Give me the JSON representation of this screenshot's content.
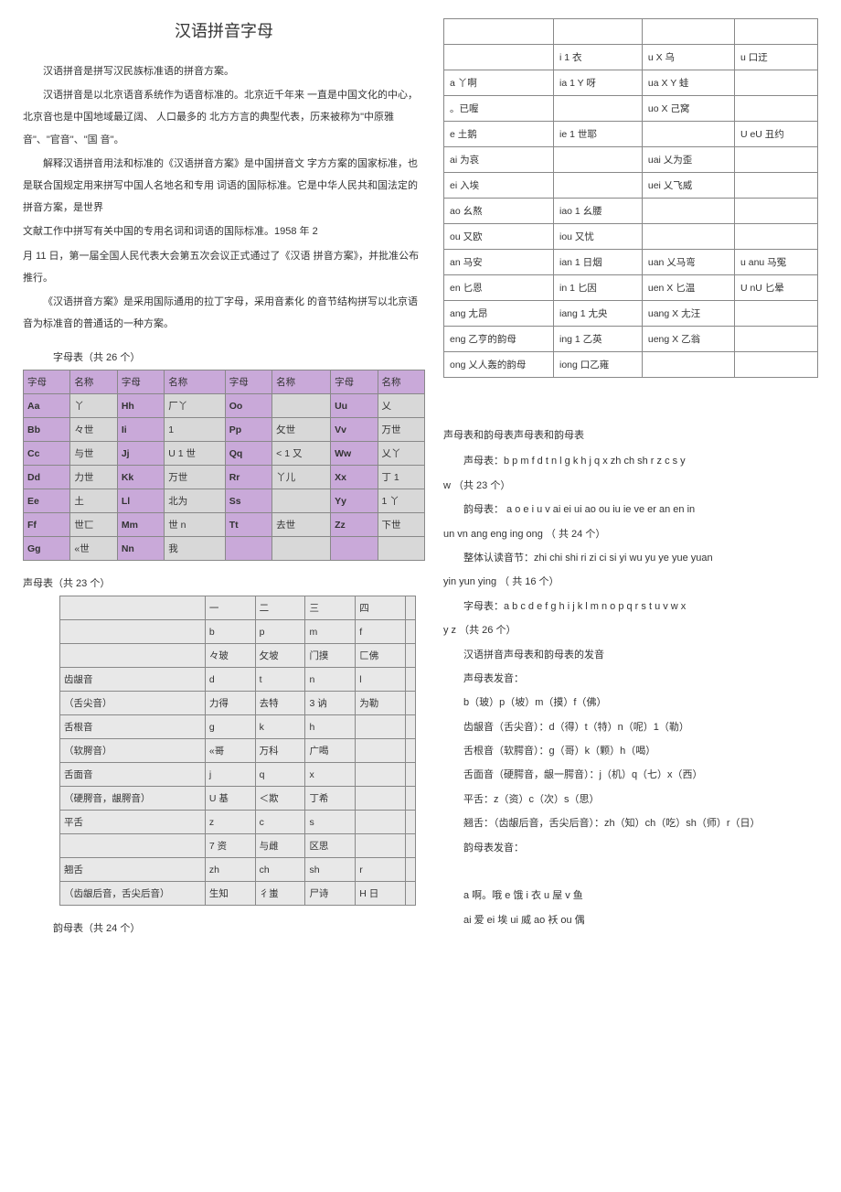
{
  "title": "汉语拼音字母",
  "intro": [
    "汉语拼音是拼写汉民族标准语的拼音方案。",
    "汉语拼音是以北京语音系统作为语音标准的。北京近千年来 一直是中国文化的中心， 北京音也是中国地域最辽阔、 人口最多的 北方方言的典型代表，历来被称为\"中原雅音\"、\"官音\"、\"国 音\"。",
    "解释汉语拼音用法和标准的《汉语拼音方案》是中国拼音文 字方方案的国家标准，也是联合国规定用来拼写中国人名地名和专用 词语的国际标准。它是中华人民共和国法定的拼音方案，是世界",
    "文献工作中拼写有关中国的专用名词和词语的国际标准。1958 年 2",
    "月 11 日，第一届全国人民代表大会第五次会议正式通过了《汉语 拼音方案》，并批准公布推行。",
    "《汉语拼音方案》是采用国际通用的拉丁字母，采用音素化 的音节结构拼写以北京语音为标准音的普通话的一种方案。"
  ],
  "zimu_label": "字母表（共 26 个）",
  "zimu_headers": [
    "字母",
    "名称",
    "字母",
    "名称",
    "字母",
    "名称",
    "字母",
    "名称"
  ],
  "zimu_rows": [
    [
      "Aa",
      "丫",
      "Hh",
      "厂丫",
      "Oo",
      "",
      "Uu",
      "乂"
    ],
    [
      "Bb",
      "々世",
      "Ii",
      "1",
      "Pp",
      "攵世",
      "Vv",
      "万世"
    ],
    [
      "Cc",
      "与世",
      "Jj",
      "U 1 世",
      "Qq",
      "< 1 又",
      "Ww",
      "乂丫"
    ],
    [
      "Dd",
      "力世",
      "Kk",
      "万世",
      "Rr",
      "丫儿",
      "Xx",
      "丁 1"
    ],
    [
      "Ee",
      "土",
      "Ll",
      "北为",
      "Ss",
      "",
      "Yy",
      "1 丫"
    ],
    [
      "Ff",
      "世匸",
      "Mm",
      "世 n",
      "Tt",
      "去世",
      "Zz",
      "下世"
    ],
    [
      "Gg",
      "«世",
      "Nn",
      "我",
      "",
      "",
      "",
      ""
    ]
  ],
  "shengmu_label": "声母表（共 23 个）",
  "shengmu_rows": [
    [
      "",
      "一",
      "二",
      "三",
      "四",
      ""
    ],
    [
      "",
      "b",
      "p",
      "m",
      "f",
      ""
    ],
    [
      "",
      "々玻",
      "攵坡",
      "门摸",
      "匚佛",
      ""
    ],
    [
      "齿龈音",
      "d",
      "t",
      "n",
      "l",
      ""
    ],
    [
      "（舌尖音）",
      "力得",
      "去特",
      "3 讷",
      "为勒",
      ""
    ],
    [
      "舌根音",
      "g",
      "k",
      "h",
      "",
      ""
    ],
    [
      "（软腭音）",
      "«哥",
      "万科",
      "广喝",
      "",
      ""
    ],
    [
      "舌面音",
      "j",
      "q",
      "x",
      "",
      ""
    ],
    [
      "（硬腭音，龈腭音）",
      "U 基",
      "＜欺",
      "丁希",
      "",
      ""
    ],
    [
      "平舌",
      "z",
      "c",
      "s",
      "",
      ""
    ],
    [
      "",
      "7 资",
      "与雌",
      "区思",
      "",
      ""
    ],
    [
      "翘舌",
      "zh",
      "ch",
      "sh",
      "r",
      ""
    ],
    [
      "（齿龈后音，舌尖后音）",
      "生知",
      "彳蚩",
      "尸诗",
      "H 日",
      ""
    ]
  ],
  "yunmu_label": "韵母表（共 24 个）",
  "yunmu_rows": [
    [
      "",
      "",
      "",
      ""
    ],
    [
      "",
      "i 1 衣",
      "u X 乌",
      "u 口迂"
    ],
    [
      "a 丫啊",
      "ia 1 Y 呀",
      "ua X Y 蛙",
      ""
    ],
    [
      "。已喔",
      "",
      "uo X 己窝",
      ""
    ],
    [
      "e 土鹅",
      "ie 1 世耶",
      "",
      "U eU 丑约"
    ],
    [
      "ai 为哀",
      "",
      "uai 乂为歪",
      ""
    ],
    [
      "ei 入埃",
      "",
      "uei 乂飞威",
      ""
    ],
    [
      "ao 幺熬",
      "iao 1 幺腰",
      "",
      ""
    ],
    [
      "ou 又欧",
      "iou 又忧",
      "",
      ""
    ],
    [
      "an 马安",
      "ian 1 日烟",
      "uan 乂马弯",
      "u anu 马冤"
    ],
    [
      "en 匕恩",
      "in 1 匕因",
      "uen X 匕温",
      "U nU 匕晕"
    ],
    [
      "ang 尢昂",
      "iang 1 尢央",
      "uang X 尢汪",
      ""
    ],
    [
      "eng 乙亨的韵母",
      "ing 1 乙英",
      "ueng X 乙翁",
      ""
    ],
    [
      "ong 乂人轰的韵母",
      "iong 口乙雍",
      "",
      ""
    ]
  ],
  "right_block": {
    "heading": "声母表和韵母表声母表和韵母表",
    "lines": [
      "声母表：b p m f d t n l g k h j q x zh ch sh r z c s y",
      "w （共 23 个）",
      "韵母表： a o e i u v ai ei ui ao ou iu ie ve er an en in",
      "un vn ang eng ing ong （ 共  24 个）",
      "整体认读音节：zhi chi shi ri zi ci si yi wu yu ye yue yuan",
      "yin yun ying （ 共  16 个）",
      "字母表：a b c d e f g h i j k l m n o p q r s t u v w x",
      "y z （共 26 个）",
      "汉语拼音声母表和韵母表的发音",
      "声母表发音：",
      "b（玻）p（坡）m（摸）f（佛）",
      "齿龈音（舌尖音）：d（得）t（特）n（呢）1（勒）",
      "舌根音（软腭音）：g（哥）k（颗）h（喝）",
      "舌面音（硬腭音，龈一腭音）：j（机）q（七）x（西）",
      "平舌：z（资）c（次）s（思）",
      "翘舌：（齿龈后音，舌尖后音）：zh（知）ch（吃）sh（师）r（日）",
      "韵母表发音：",
      "",
      "a 啊。哦 e 饿 i 衣 u 屋 v 鱼",
      "ai 爱 ei 埃 ui 威 ao 袄 ou 偶"
    ],
    "indent_flags": [
      true,
      false,
      true,
      false,
      true,
      false,
      true,
      false,
      true,
      true,
      true,
      true,
      true,
      true,
      true,
      true,
      true,
      false,
      true,
      true
    ]
  }
}
